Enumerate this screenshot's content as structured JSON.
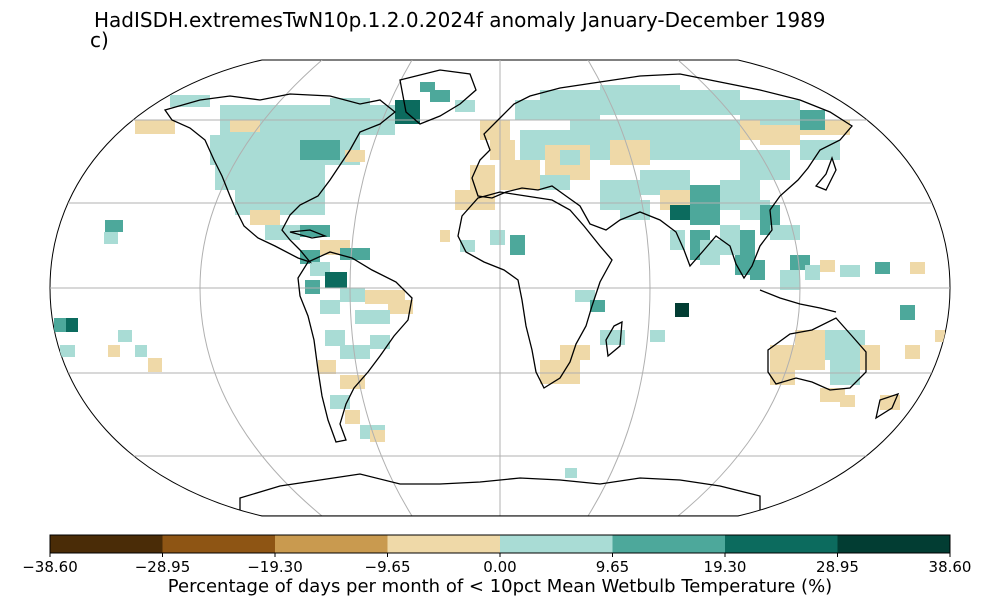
{
  "title": "HadISDH.extremesTwN10p.1.2.0.2024f anomaly January-December 1989",
  "panel_label": "c)",
  "colorbar": {
    "ticks": [
      "−38.60",
      "−28.95",
      "−19.30",
      "−9.65",
      "0.00",
      "9.65",
      "19.30",
      "28.95",
      "38.60"
    ],
    "colors": [
      "#4a2c07",
      "#8e5514",
      "#c99a4f",
      "#efd9a8",
      "#ffffff",
      "#a9dcd5",
      "#4da89b",
      "#0c6b5e",
      "#023d33"
    ],
    "label": "Percentage of days per month of < 10pct Mean Wetbulb Temperature (%)"
  },
  "map": {
    "projection": "Robinson",
    "gridlines": true,
    "coastline_color": "#000000",
    "legend_colors": {
      "light_brown": "#efd9a8",
      "light_teal": "#a9dcd5",
      "teal": "#4da89b",
      "dark_teal": "#0c6b5e",
      "darkest_teal": "#023d33"
    }
  }
}
